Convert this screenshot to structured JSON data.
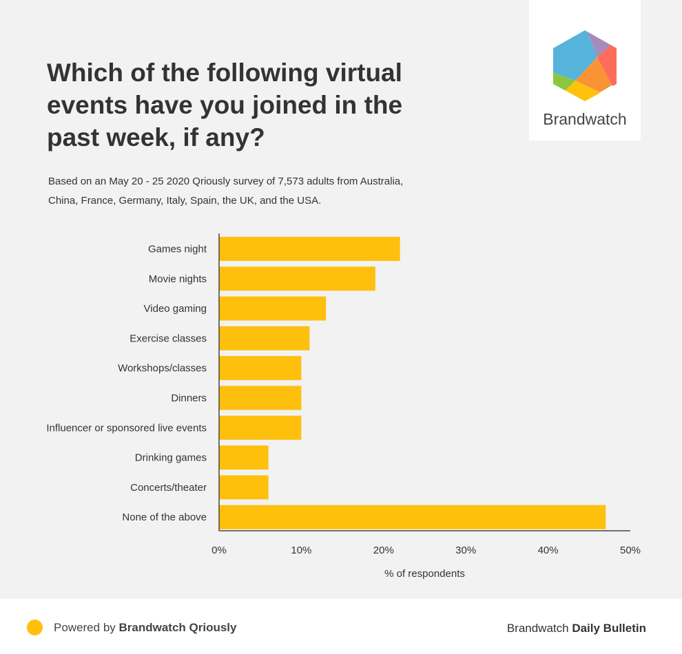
{
  "title": "Which of the following virtual events have you joined in the past week, if any?",
  "subtitle": "Based on an May 20 - 25 2020 Qriously survey of 7,573 adults from Australia, China, France, Germany, Italy, Spain, the UK, and the USA.",
  "logo": {
    "text": "Brandwatch"
  },
  "footer": {
    "powered_prefix": "Powered by ",
    "powered_brand": "Brandwatch Qriously",
    "bulletin_prefix": "Brandwatch ",
    "bulletin_bold": "Daily Bulletin"
  },
  "colors": {
    "bar": "#ffbf0d",
    "background": "#f2f2f2"
  },
  "chart_data": {
    "type": "bar",
    "orientation": "horizontal",
    "categories": [
      "Games night",
      "Movie nights",
      "Video gaming",
      "Exercise classes",
      "Workshops/classes",
      "Dinners",
      "Influencer or sponsored live events",
      "Drinking games",
      "Concerts/theater",
      "None of the above"
    ],
    "values": [
      22,
      19,
      13,
      11,
      10,
      10,
      10,
      6,
      6,
      47
    ],
    "xlabel": "% of respondents",
    "xlim": [
      0,
      50
    ],
    "xticks": [
      "0%",
      "10%",
      "20%",
      "30%",
      "40%",
      "50%"
    ],
    "grid": false
  }
}
